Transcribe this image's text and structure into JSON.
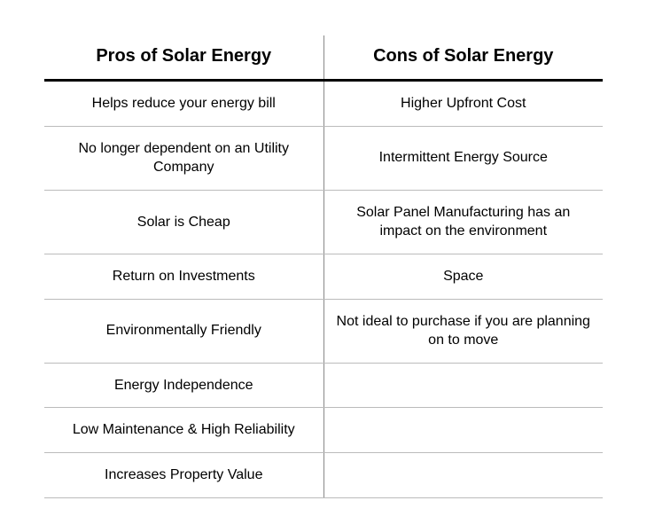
{
  "table": {
    "headers": {
      "pros": "Pros of Solar Energy",
      "cons": "Cons of Solar Energy"
    },
    "rows": [
      {
        "pro": "Helps reduce your energy bill",
        "con": "Higher Upfront Cost"
      },
      {
        "pro": "No longer dependent on an Utility Company",
        "con": "Intermittent Energy Source"
      },
      {
        "pro": "Solar is Cheap",
        "con": "Solar Panel Manufacturing has an impact on the environment"
      },
      {
        "pro": "Return on Investments",
        "con": "Space"
      },
      {
        "pro": "Environmentally Friendly",
        "con": "Not ideal to purchase if you are planning on to move"
      },
      {
        "pro": "Energy Independence",
        "con": ""
      },
      {
        "pro": "Low Maintenance & High Reliability",
        "con": ""
      },
      {
        "pro": "Increases Property Value",
        "con": ""
      }
    ],
    "style": {
      "header_fontsize": 20,
      "cell_fontsize": 16,
      "header_border_color": "#000000",
      "row_border_color": "#bbbbbb",
      "divider_color": "#888888",
      "text_color": "#000000",
      "background_color": "#ffffff"
    }
  }
}
